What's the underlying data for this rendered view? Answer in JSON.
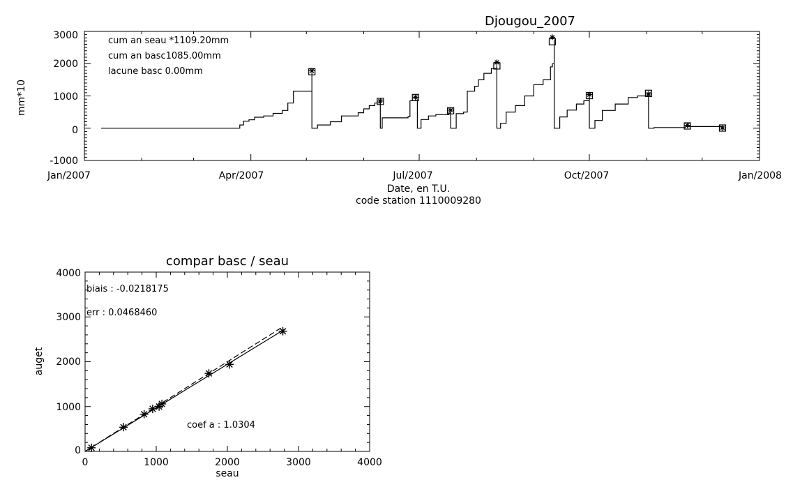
{
  "chart_data": [
    {
      "type": "line",
      "title": "Djougou_2007",
      "xlabel": "Date, en T.U.",
      "xlabel2": "code station 1110009280",
      "ylabel": "mm*10",
      "xlim": [
        "2007-01-01",
        "2008-01-01"
      ],
      "ylim": [
        -1000,
        3000
      ],
      "x_ticks": [
        "Jan/2007",
        "Apr/2007",
        "Jul/2007",
        "Oct/2007",
        "Jan/2008"
      ],
      "y_ticks": [
        "3000",
        "2000",
        "1000",
        "0",
        "-1000"
      ],
      "annotations": [
        "cum an seau *1109.20mm",
        "cum an basc1085.00mm",
        "lacune basc 0.00mm"
      ],
      "series": [
        {
          "marker": "line",
          "points": [
            [
              "2007-01-10",
              0
            ],
            [
              "2007-03-24",
              0
            ],
            [
              "2007-03-26",
              100
            ],
            [
              "2007-03-28",
              220
            ],
            [
              "2007-03-31",
              260
            ],
            [
              "2007-04-03",
              340
            ],
            [
              "2007-04-08",
              380
            ],
            [
              "2007-04-13",
              460
            ],
            [
              "2007-04-18",
              550
            ],
            [
              "2007-04-21",
              780
            ],
            [
              "2007-04-24",
              1150
            ],
            [
              "2007-05-01",
              1150
            ],
            [
              "2007-05-04",
              1700
            ],
            [
              "2007-05-04",
              0
            ],
            [
              "2007-05-07",
              100
            ],
            [
              "2007-05-14",
              200
            ],
            [
              "2007-05-20",
              380
            ],
            [
              "2007-05-29",
              480
            ],
            [
              "2007-06-01",
              600
            ],
            [
              "2007-06-04",
              700
            ],
            [
              "2007-06-07",
              780
            ],
            [
              "2007-06-10",
              800
            ],
            [
              "2007-06-10",
              0
            ],
            [
              "2007-06-11",
              320
            ],
            [
              "2007-06-25",
              360
            ],
            [
              "2007-06-26",
              850
            ],
            [
              "2007-06-30",
              890
            ],
            [
              "2007-06-30",
              0
            ],
            [
              "2007-07-02",
              270
            ],
            [
              "2007-07-06",
              380
            ],
            [
              "2007-07-10",
              420
            ],
            [
              "2007-07-17",
              470
            ],
            [
              "2007-07-18",
              520
            ],
            [
              "2007-07-18",
              0
            ],
            [
              "2007-07-21",
              450
            ],
            [
              "2007-07-25",
              500
            ],
            [
              "2007-07-27",
              1150
            ],
            [
              "2007-07-31",
              1300
            ],
            [
              "2007-08-02",
              1500
            ],
            [
              "2007-08-05",
              1700
            ],
            [
              "2007-08-09",
              1850
            ],
            [
              "2007-08-12",
              1950
            ],
            [
              "2007-08-12",
              0
            ],
            [
              "2007-08-14",
              150
            ],
            [
              "2007-08-17",
              500
            ],
            [
              "2007-08-22",
              700
            ],
            [
              "2007-08-27",
              1000
            ],
            [
              "2007-09-01",
              1350
            ],
            [
              "2007-09-06",
              1500
            ],
            [
              "2007-09-10",
              1900
            ],
            [
              "2007-09-11",
              2000
            ],
            [
              "2007-09-12",
              2750
            ],
            [
              "2007-09-12",
              0
            ],
            [
              "2007-09-15",
              350
            ],
            [
              "2007-09-19",
              560
            ],
            [
              "2007-09-24",
              750
            ],
            [
              "2007-09-28",
              850
            ],
            [
              "2007-10-01",
              1000
            ],
            [
              "2007-10-01",
              0
            ],
            [
              "2007-10-04",
              240
            ],
            [
              "2007-10-08",
              550
            ],
            [
              "2007-10-15",
              750
            ],
            [
              "2007-10-22",
              950
            ],
            [
              "2007-10-27",
              1000
            ],
            [
              "2007-11-02",
              1050
            ],
            [
              "2007-11-02",
              0
            ],
            [
              "2007-11-05",
              20
            ],
            [
              "2007-11-21",
              20
            ],
            [
              "2007-11-22",
              50
            ],
            [
              "2007-12-10",
              50
            ],
            [
              "2007-12-12",
              0
            ]
          ]
        }
      ],
      "markers_square": [
        [
          "2007-05-04",
          1750
        ],
        [
          "2007-06-10",
          830
        ],
        [
          "2007-06-29",
          950
        ],
        [
          "2007-07-18",
          540
        ],
        [
          "2007-08-12",
          1930
        ],
        [
          "2007-09-11",
          2680
        ],
        [
          "2007-10-01",
          1010
        ],
        [
          "2007-11-02",
          1080
        ],
        [
          "2007-11-23",
          70
        ],
        [
          "2007-12-12",
          5
        ]
      ],
      "markers_star": [
        [
          "2007-05-04",
          1780
        ],
        [
          "2007-06-10",
          840
        ],
        [
          "2007-06-29",
          960
        ],
        [
          "2007-07-18",
          560
        ],
        [
          "2007-08-12",
          2040
        ],
        [
          "2007-09-11",
          2820
        ],
        [
          "2007-10-01",
          1040
        ],
        [
          "2007-11-02",
          1060
        ],
        [
          "2007-11-23",
          90
        ],
        [
          "2007-12-12",
          10
        ]
      ]
    },
    {
      "type": "scatter",
      "title": "compar basc / seau",
      "xlabel": "seau",
      "ylabel": "auget",
      "xlim": [
        0,
        4000
      ],
      "ylim": [
        0,
        4000
      ],
      "x_ticks": [
        "0",
        "1000",
        "2000",
        "3000",
        "4000"
      ],
      "y_ticks": [
        "4000",
        "3000",
        "2000",
        "1000",
        "0"
      ],
      "annotations": {
        "biais": "biais : -0.0218175",
        "err": "err : 0.0468460",
        "coef": "coef a : 1.0304"
      },
      "points": [
        [
          90,
          80
        ],
        [
          540,
          540
        ],
        [
          830,
          830
        ],
        [
          950,
          950
        ],
        [
          1040,
          1000
        ],
        [
          1080,
          1060
        ],
        [
          1740,
          1740
        ],
        [
          2030,
          1940
        ],
        [
          2780,
          2680
        ]
      ],
      "fit_line": [
        [
          0,
          0
        ],
        [
          2800,
          2720
        ]
      ],
      "identity_line_dashed": [
        [
          0,
          0
        ],
        [
          2750,
          2750
        ]
      ]
    }
  ]
}
